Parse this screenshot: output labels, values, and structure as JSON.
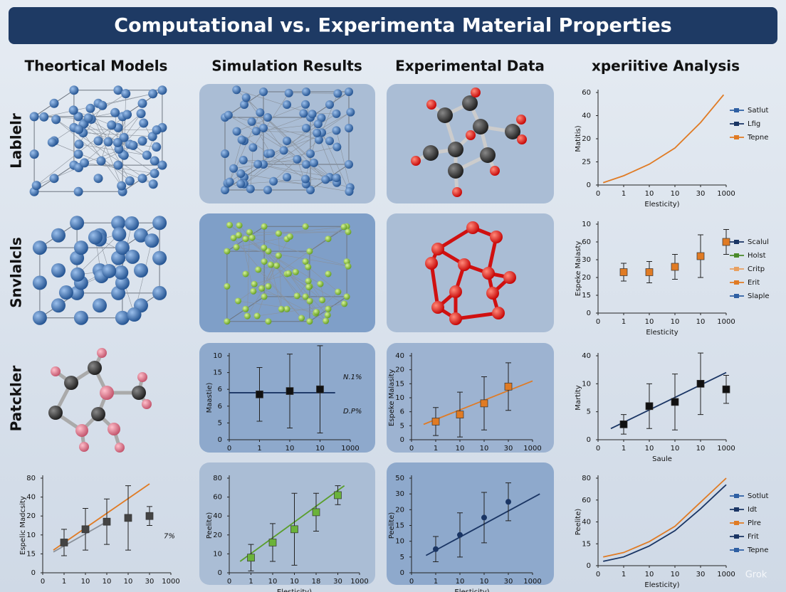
{
  "title": "Computational vs. Experimenta Material Properties",
  "column_headers": [
    "Theortical Models",
    "Simulation Results",
    "Experimental Data",
    "xperiitive Analysis"
  ],
  "row_labels": [
    "Lablelr",
    "Snvlalcls",
    "Patckler"
  ],
  "watermark": "Grok",
  "panels": [
    {
      "y_label": "Matitis)",
      "x_label": "Elesticity)",
      "xticks": [
        {
          "value": 0,
          "label": "0"
        },
        {
          "value": 1,
          "label": "1"
        },
        {
          "value": 2,
          "label": "10"
        },
        {
          "value": 3,
          "label": "10"
        },
        {
          "value": 4,
          "label": "30"
        },
        {
          "value": 5,
          "label": "1000"
        }
      ],
      "xlim": [
        0,
        5
      ],
      "yticks": [
        {
          "value": 0,
          "label": "0"
        },
        {
          "value": 1,
          "label": "25"
        },
        {
          "value": 2,
          "label": "20"
        },
        {
          "value": 3,
          "label": "40"
        },
        {
          "value": 4,
          "label": "60"
        }
      ],
      "ylim": [
        0,
        4
      ],
      "series": [
        {
          "color": "#e07b24",
          "x": [
            0.2,
            1,
            2,
            3,
            4,
            4.9
          ],
          "values": [
            0.1,
            0.4,
            0.9,
            1.6,
            2.7,
            3.9
          ],
          "line": true
        }
      ],
      "legend": [
        {
          "name": "Satlut",
          "color": "#2e5fa3"
        },
        {
          "name": "Lfig",
          "color": "#1a3564"
        },
        {
          "name": "Tepne",
          "color": "#e07b24"
        }
      ]
    },
    {
      "y_label": "Espeke Malasty",
      "x_label": "Elesticity",
      "xticks": [
        {
          "value": 0,
          "label": "0"
        },
        {
          "value": 1,
          "label": "1"
        },
        {
          "value": 2,
          "label": "10"
        },
        {
          "value": 3,
          "label": "10"
        },
        {
          "value": 4,
          "label": "10"
        },
        {
          "value": 5,
          "label": "1000"
        }
      ],
      "xlim": [
        0,
        5
      ],
      "yticks": [
        {
          "value": 0,
          "label": "0"
        },
        {
          "value": 1,
          "label": "15"
        },
        {
          "value": 2,
          "label": "20"
        },
        {
          "value": 3,
          "label": "30"
        },
        {
          "value": 4,
          "label": "60"
        },
        {
          "value": 5,
          "label": "10"
        }
      ],
      "ylim": [
        0,
        5
      ],
      "series": [
        {
          "color": "#e07b24",
          "x": [
            1,
            2,
            3,
            4,
            5
          ],
          "values": [
            2.3,
            2.3,
            2.6,
            3.2,
            4.0
          ],
          "errors": [
            0.5,
            0.6,
            0.7,
            1.2,
            0.7
          ],
          "marker": "square"
        }
      ],
      "legend": [
        {
          "name": "Scalul",
          "color": "#1a3564"
        },
        {
          "name": "Holst",
          "color": "#4a8a2a"
        },
        {
          "name": "Critp",
          "color": "#e8a060"
        },
        {
          "name": "Erit",
          "color": "#e07b24"
        },
        {
          "name": "Slaple",
          "color": "#2e5fa3"
        }
      ]
    },
    {
      "y_label": "Martity",
      "x_label": "Saule",
      "xticks": [
        {
          "value": 0,
          "label": "0"
        },
        {
          "value": 1,
          "label": "1"
        },
        {
          "value": 2,
          "label": "10"
        },
        {
          "value": 3,
          "label": "10"
        },
        {
          "value": 4,
          "label": "10"
        },
        {
          "value": 5,
          "label": "1000"
        }
      ],
      "xlim": [
        0,
        5
      ],
      "yticks": [
        {
          "value": 0,
          "label": "0"
        },
        {
          "value": 1,
          "label": "5"
        },
        {
          "value": 2,
          "label": "10"
        },
        {
          "value": 3,
          "label": "40"
        }
      ],
      "ylim": [
        0,
        3
      ],
      "series": [
        {
          "color": "#1a3564",
          "x": [
            0.5,
            5
          ],
          "values": [
            0.4,
            2.4
          ],
          "line": true
        },
        {
          "color": "#111111",
          "x": [
            1,
            2,
            3,
            4,
            5
          ],
          "values": [
            0.55,
            1.2,
            1.35,
            2.0,
            1.8
          ],
          "errors": [
            0.35,
            0.8,
            1.0,
            1.1,
            0.5
          ],
          "marker": "square"
        }
      ],
      "legend": []
    },
    {
      "y_label": "Peelite)",
      "x_label": "Elesticity)",
      "xticks": [
        {
          "value": 0,
          "label": "0"
        },
        {
          "value": 1,
          "label": "1"
        },
        {
          "value": 2,
          "label": "10"
        },
        {
          "value": 3,
          "label": "10"
        },
        {
          "value": 4,
          "label": "30"
        },
        {
          "value": 5,
          "label": "1000"
        }
      ],
      "xlim": [
        0,
        5
      ],
      "yticks": [
        {
          "value": 0,
          "label": "0"
        },
        {
          "value": 1,
          "label": "15"
        },
        {
          "value": 2,
          "label": "40"
        },
        {
          "value": 3,
          "label": "60"
        },
        {
          "value": 4,
          "label": "80"
        }
      ],
      "ylim": [
        0,
        4
      ],
      "series": [
        {
          "color": "#e07b24",
          "x": [
            0.2,
            1,
            2,
            3,
            4,
            5
          ],
          "values": [
            0.4,
            0.6,
            1.1,
            1.8,
            2.9,
            4.0
          ],
          "line": true
        },
        {
          "color": "#1a3564",
          "x": [
            0.2,
            1,
            2,
            3,
            4,
            5
          ],
          "values": [
            0.2,
            0.4,
            0.9,
            1.6,
            2.6,
            3.7
          ],
          "line": true
        }
      ],
      "legend": [
        {
          "name": "Sotlut",
          "color": "#2e5fa3"
        },
        {
          "name": "Idt",
          "color": "#1a3564"
        },
        {
          "name": "Plre",
          "color": "#e07b24"
        },
        {
          "name": "Frit",
          "color": "#1a3564"
        },
        {
          "name": "Tepne",
          "color": "#2e5fa3"
        }
      ]
    },
    {
      "y_label": "Maastie)",
      "xticks": [
        {
          "value": 0,
          "label": "0"
        },
        {
          "value": 1,
          "label": "1"
        },
        {
          "value": 2,
          "label": "10"
        },
        {
          "value": 3,
          "label": "10"
        },
        {
          "value": 4,
          "label": "1000"
        }
      ],
      "xlim": [
        0,
        4
      ],
      "yticks": [
        {
          "value": 0,
          "label": "0"
        },
        {
          "value": 1,
          "label": "5"
        },
        {
          "value": 2,
          "label": "6"
        },
        {
          "value": 3,
          "label": "6"
        },
        {
          "value": 4,
          "label": "15"
        },
        {
          "value": 5,
          "label": "10"
        }
      ],
      "ylim": [
        0,
        5
      ],
      "series": [
        {
          "color": "#1a3564",
          "x": [
            0,
            3.5
          ],
          "values": [
            2.8,
            2.8
          ],
          "line": true
        },
        {
          "color": "#111111",
          "x": [
            1,
            2,
            3
          ],
          "values": [
            2.7,
            2.9,
            3.0
          ],
          "errors": [
            1.6,
            2.2,
            2.6
          ],
          "marker": "square"
        }
      ],
      "annotations": [
        "N.1%",
        "D.P%"
      ],
      "legend": []
    },
    {
      "y_label": "Espeke Malasity",
      "xticks": [
        {
          "value": 0,
          "label": "0"
        },
        {
          "value": 1,
          "label": "1"
        },
        {
          "value": 2,
          "label": "10"
        },
        {
          "value": 3,
          "label": "10"
        },
        {
          "value": 4,
          "label": "30"
        },
        {
          "value": 5,
          "label": "1000"
        }
      ],
      "xlim": [
        0,
        5
      ],
      "yticks": [
        {
          "value": 0,
          "label": "0"
        },
        {
          "value": 1,
          "label": "5"
        },
        {
          "value": 2,
          "label": "6"
        },
        {
          "value": 3,
          "label": "10"
        },
        {
          "value": 4,
          "label": "15"
        },
        {
          "value": 5,
          "label": "20"
        },
        {
          "value": 6,
          "label": "40"
        }
      ],
      "ylim": [
        0,
        6
      ],
      "series": [
        {
          "color": "#e07b24",
          "x": [
            0.5,
            5
          ],
          "values": [
            1.1,
            4.2
          ],
          "line": true
        },
        {
          "color": "#e07b24",
          "x": [
            1,
            2,
            3,
            4
          ],
          "values": [
            1.3,
            1.8,
            2.6,
            3.8
          ],
          "errors": [
            1,
            1.6,
            1.9,
            1.7
          ],
          "marker": "square"
        }
      ],
      "legend": []
    },
    {
      "y_label": "Espelic Madcsity",
      "xticks": [
        {
          "value": 0,
          "label": "0"
        },
        {
          "value": 1,
          "label": "1"
        },
        {
          "value": 2,
          "label": "10"
        },
        {
          "value": 3,
          "label": "10"
        },
        {
          "value": 4,
          "label": "10"
        },
        {
          "value": 5,
          "label": "30"
        },
        {
          "value": 6,
          "label": "1000"
        }
      ],
      "xlim": [
        0,
        6
      ],
      "yticks": [
        {
          "value": 0,
          "label": "0"
        },
        {
          "value": 1,
          "label": "15"
        },
        {
          "value": 2,
          "label": "10"
        },
        {
          "value": 3,
          "label": "20"
        },
        {
          "value": 4,
          "label": "40"
        },
        {
          "value": 5,
          "label": "80"
        }
      ],
      "ylim": [
        0,
        5
      ],
      "series": [
        {
          "color": "#e07b24",
          "x": [
            0.5,
            5
          ],
          "values": [
            1.2,
            4.7
          ],
          "line": true
        },
        {
          "color": "#8a9099",
          "x": [
            0.5,
            3
          ],
          "values": [
            1.1,
            2.7
          ],
          "line": true
        },
        {
          "color": "#444444",
          "x": [
            1,
            2,
            3,
            4,
            5
          ],
          "values": [
            1.6,
            2.3,
            2.7,
            2.9,
            3.0
          ],
          "errors": [
            0.7,
            1.1,
            1.2,
            1.7,
            0.5
          ],
          "marker": "square"
        }
      ],
      "annotations": [
        "7%"
      ],
      "legend": []
    },
    {
      "y_label": "Peelite)",
      "x_label": "Elesticity)",
      "xticks": [
        {
          "value": 0,
          "label": "0"
        },
        {
          "value": 1,
          "label": "1"
        },
        {
          "value": 2,
          "label": "10"
        },
        {
          "value": 3,
          "label": "10"
        },
        {
          "value": 4,
          "label": "18"
        },
        {
          "value": 5,
          "label": "30"
        },
        {
          "value": 6,
          "label": "1000"
        }
      ],
      "xlim": [
        0,
        6
      ],
      "yticks": [
        {
          "value": 0,
          "label": "0"
        },
        {
          "value": 1,
          "label": "10"
        },
        {
          "value": 2,
          "label": "20"
        },
        {
          "value": 3,
          "label": "40"
        },
        {
          "value": 4,
          "label": "60"
        },
        {
          "value": 5,
          "label": "80"
        }
      ],
      "ylim": [
        0,
        5
      ],
      "series": [
        {
          "color": "#5a9e2c",
          "x": [
            0.5,
            5.3
          ],
          "values": [
            0.6,
            4.6
          ],
          "line": true
        },
        {
          "color": "#6bb33a",
          "x": [
            1,
            2,
            3,
            4,
            5
          ],
          "values": [
            0.8,
            1.6,
            2.3,
            3.2,
            4.1
          ],
          "errors": [
            0.7,
            1,
            1.9,
            1,
            0.5
          ],
          "marker": "square"
        }
      ],
      "legend": []
    },
    {
      "y_label": "Peelite)",
      "x_label": "Elesticity)",
      "xticks": [
        {
          "value": 0,
          "label": "0"
        },
        {
          "value": 1,
          "label": "1"
        },
        {
          "value": 2,
          "label": "10"
        },
        {
          "value": 3,
          "label": "10"
        },
        {
          "value": 4,
          "label": "30"
        },
        {
          "value": 5,
          "label": "1000"
        }
      ],
      "xlim": [
        0,
        5
      ],
      "yticks": [
        {
          "value": 0,
          "label": "0"
        },
        {
          "value": 1,
          "label": "5"
        },
        {
          "value": 2,
          "label": "10"
        },
        {
          "value": 3,
          "label": "15"
        },
        {
          "value": 4,
          "label": "20"
        },
        {
          "value": 5,
          "label": "30"
        },
        {
          "value": 6,
          "label": "50"
        }
      ],
      "ylim": [
        0,
        6
      ],
      "series": [
        {
          "color": "#1a3564",
          "x": [
            0.6,
            5.3
          ],
          "values": [
            1.1,
            5.0
          ],
          "line": true
        },
        {
          "color": "#1a3564",
          "x": [
            1,
            2,
            3,
            4
          ],
          "values": [
            1.5,
            2.4,
            3.5,
            4.5
          ],
          "errors": [
            0.8,
            1.4,
            1.6,
            1.2
          ],
          "marker": "dot"
        }
      ],
      "legend": []
    }
  ]
}
